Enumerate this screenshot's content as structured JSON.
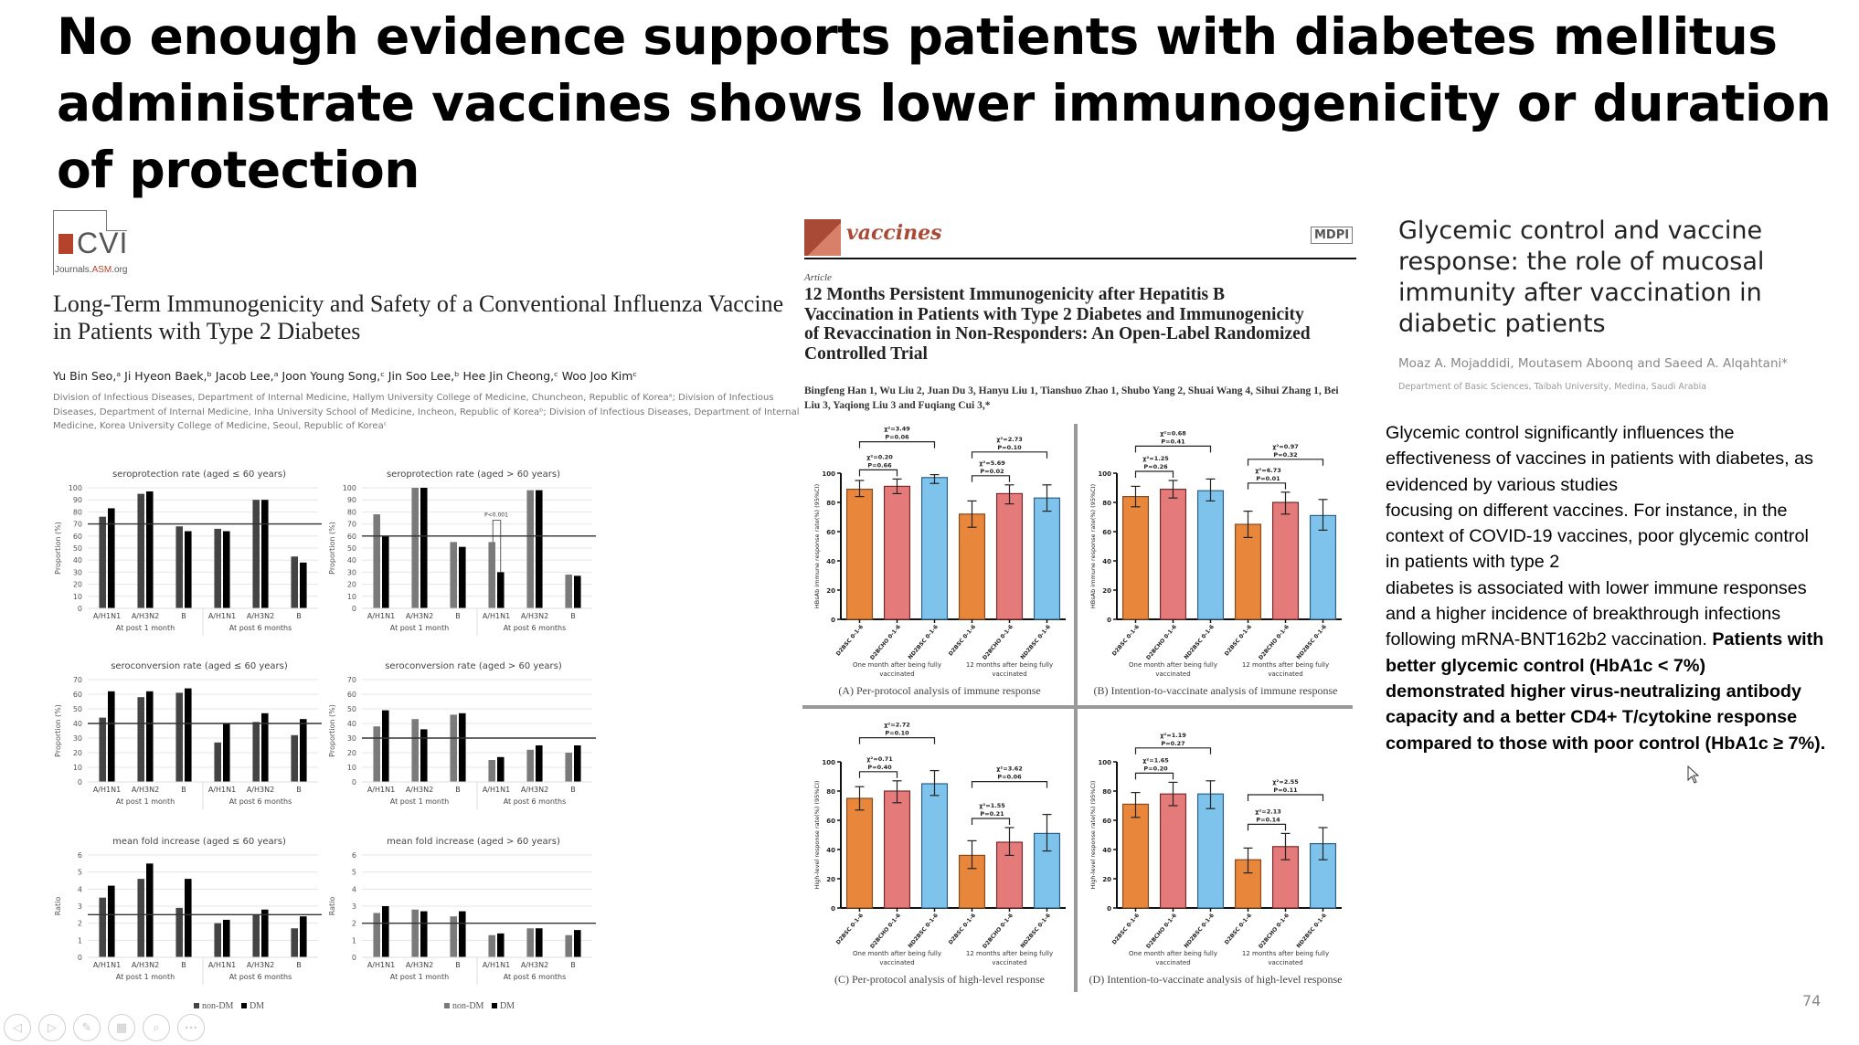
{
  "slide": {
    "title": "No enough evidence supports patients with diabetes mellitus administrate vaccines shows lower immunogenicity or duration of protection",
    "page_number": "74"
  },
  "paper1": {
    "journal_logo": "CVI",
    "journal_site_prefix": "Journals.",
    "journal_site_asm": "ASM",
    "journal_site_suffix": ".org",
    "title": "Long-Term Immunogenicity and Safety of a Conventional Influenza Vaccine in Patients with Type 2 Diabetes",
    "authors": "Yu Bin Seo,ᵃ Ji Hyeon Baek,ᵇ Jacob Lee,ᵃ Joon Young Song,ᶜ Jin Soo Lee,ᵇ Hee Jin Cheong,ᶜ Woo Joo Kimᶜ",
    "affiliations": "Division of Infectious Diseases, Department of Internal Medicine, Hallym University College of Medicine, Chuncheon, Republic of Koreaᵃ; Division of Infectious Diseases, Department of Internal Medicine, Inha University School of Medicine, Incheon, Republic of Koreaᵇ; Division of Infectious Diseases, Department of Internal Medicine, Korea University College of Medicine, Seoul, Republic of Koreaᶜ",
    "legend": {
      "non_dm": "non-DM",
      "dm": "DM"
    }
  },
  "paper2": {
    "journal": "vaccines",
    "publisher": "MDPI",
    "article_type": "Article",
    "title": "12 Months Persistent Immunogenicity after Hepatitis B Vaccination in Patients with Type 2 Diabetes and Immunogenicity of Revaccination in Non-Responders: An Open-Label Randomized Controlled Trial",
    "authors": "Bingfeng Han 1, Wu Liu 2, Juan Du 3, Hanyu Liu 1, Tianshuo Zhao 1, Shubo Yang 2, Shuai Wang 4, Sihui Zhang 1, Bei Liu 3, Yaqiong Liu 3 and Fuqiang Cui 3,*"
  },
  "paper3": {
    "title": "Glycemic control and vaccine response: the role of mucosal immunity after vaccination in diabetic patients",
    "authors": "Moaz A. Mojaddidi, Moutasem Aboonq and Saeed A. Alqahtani*",
    "affiliation": "Department of Basic Sciences, Taibah University, Medina, Saudi Arabia"
  },
  "summary": {
    "lines": [
      "Glycemic control significantly influences the",
      "effectiveness of vaccines in patients with diabetes, as",
      "evidenced by various studies",
      "focusing on different vaccines. For instance, in the",
      "context of COVID-19 vaccines, poor glycemic control",
      "in patients with type 2",
      "diabetes is associated with lower immune responses",
      "and a higher incidence of breakthrough infections"
    ],
    "line9_normal": "following mRNA-BNT162b2 vaccination. ",
    "line9_bold": "Patients with",
    "bold_lines": [
      "better glycemic control (HbA1c < 7%)",
      "demonstrated higher virus-neutralizing antibody",
      "capacity and a better CD4+ T/cytokine response",
      "compared to those with poor control (HbA1c ≥ 7%)."
    ]
  },
  "nav": {
    "buttons": [
      "previous",
      "next",
      "pen",
      "slides",
      "zoom",
      "more"
    ],
    "glyphs": [
      "◁",
      "▷",
      "✎",
      "▦",
      "⌕",
      "•••"
    ]
  },
  "colors": {
    "non_dm_young": "#444444",
    "non_dm_old": "#7a7a7a",
    "dm": "#000000",
    "d2bsc": "#e8873c",
    "d2bcho": "#e57a7a",
    "nd2bsc": "#7ec3ec",
    "cvi_red": "#b5432c",
    "vaccines_red": "#a94a36"
  },
  "chart_data": [
    {
      "type": "bar",
      "id": "flu-spr-young",
      "title": "seroprotection rate (aged ≤ 60 years)",
      "ylabel": "Proportion (%)",
      "ylim": [
        0,
        100
      ],
      "yticks": [
        0,
        10,
        20,
        30,
        40,
        50,
        60,
        70,
        80,
        90,
        100
      ],
      "reference_line": 70,
      "categories": [
        "A/H1N1",
        "A/H3N2",
        "B",
        "A/H1N1",
        "A/H3N2",
        "B"
      ],
      "groups": [
        "At post 1 month",
        "At post 6 months"
      ],
      "series": [
        {
          "name": "non-DM",
          "values": [
            76,
            95,
            68,
            66,
            90,
            43
          ]
        },
        {
          "name": "DM",
          "values": [
            83,
            97,
            64,
            64,
            90,
            38
          ]
        }
      ]
    },
    {
      "type": "bar",
      "id": "flu-spr-old",
      "title": "seroprotection rate (aged > 60 years)",
      "ylabel": "Proportion (%)",
      "ylim": [
        0,
        100
      ],
      "yticks": [
        0,
        10,
        20,
        30,
        40,
        50,
        60,
        70,
        80,
        90,
        100
      ],
      "reference_line": 60,
      "annotation": "P<0.001",
      "categories": [
        "A/H1N1",
        "A/H3N2",
        "B",
        "A/H1N1",
        "A/H3N2",
        "B"
      ],
      "groups": [
        "At post 1 month",
        "At post 6 months"
      ],
      "series": [
        {
          "name": "non-DM",
          "values": [
            78,
            100,
            55,
            55,
            98,
            28
          ]
        },
        {
          "name": "DM",
          "values": [
            60,
            100,
            51,
            30,
            98,
            27
          ]
        }
      ]
    },
    {
      "type": "bar",
      "id": "flu-scr-young",
      "title": "seroconversion rate (aged ≤ 60 years)",
      "ylabel": "Proportion (%)",
      "ylim": [
        0,
        70
      ],
      "yticks": [
        0,
        10,
        20,
        30,
        40,
        50,
        60,
        70
      ],
      "reference_line": 40,
      "categories": [
        "A/H1N1",
        "A/H3N2",
        "B",
        "A/H1N1",
        "A/H3N2",
        "B"
      ],
      "groups": [
        "At post 1 month",
        "At post 6 months"
      ],
      "series": [
        {
          "name": "non-DM",
          "values": [
            44,
            58,
            61,
            27,
            41,
            32
          ]
        },
        {
          "name": "DM",
          "values": [
            62,
            62,
            64,
            40,
            47,
            43
          ]
        }
      ]
    },
    {
      "type": "bar",
      "id": "flu-scr-old",
      "title": "seroconversion rate (aged > 60 years)",
      "ylabel": "Proportion (%)",
      "ylim": [
        0,
        70
      ],
      "yticks": [
        0,
        10,
        20,
        30,
        40,
        50,
        60,
        70
      ],
      "reference_line": 30,
      "categories": [
        "A/H1N1",
        "A/H3N2",
        "B",
        "A/H1N1",
        "A/H3N2",
        "B"
      ],
      "groups": [
        "At post 1 month",
        "At post 6 months"
      ],
      "series": [
        {
          "name": "non-DM",
          "values": [
            38,
            43,
            46,
            15,
            22,
            20
          ]
        },
        {
          "name": "DM",
          "values": [
            49,
            36,
            47,
            17,
            25,
            25
          ]
        }
      ]
    },
    {
      "type": "bar",
      "id": "flu-mfi-young",
      "title": "mean fold increase (aged ≤ 60 years)",
      "ylabel": "Ratio",
      "ylim": [
        0,
        6
      ],
      "yticks": [
        0,
        1,
        2,
        3,
        4,
        5,
        6
      ],
      "reference_line": 2.5,
      "categories": [
        "A/H1N1",
        "A/H3N2",
        "B",
        "A/H1N1",
        "A/H3N2",
        "B"
      ],
      "groups": [
        "At post 1 month",
        "At post 6 months"
      ],
      "series": [
        {
          "name": "non-DM",
          "values": [
            3.5,
            4.6,
            2.9,
            2.0,
            2.5,
            1.7
          ]
        },
        {
          "name": "DM",
          "values": [
            4.2,
            5.5,
            4.6,
            2.2,
            2.8,
            2.4
          ]
        }
      ]
    },
    {
      "type": "bar",
      "id": "flu-mfi-old",
      "title": "mean fold increase (aged > 60 years)",
      "ylabel": "Ratio",
      "ylim": [
        0,
        6
      ],
      "yticks": [
        0,
        1,
        2,
        3,
        4,
        5,
        6
      ],
      "reference_line": 2.0,
      "categories": [
        "A/H1N1",
        "A/H3N2",
        "B",
        "A/H1N1",
        "A/H3N2",
        "B"
      ],
      "groups": [
        "At post 1 month",
        "At post 6 months"
      ],
      "series": [
        {
          "name": "non-DM",
          "values": [
            2.6,
            2.8,
            2.4,
            1.3,
            1.7,
            1.3
          ]
        },
        {
          "name": "DM",
          "values": [
            3.0,
            2.7,
            2.7,
            1.4,
            1.7,
            1.6
          ]
        }
      ]
    },
    {
      "type": "bar",
      "id": "hbv-A",
      "title": "(A) Per-protocol analysis of immune response",
      "ylabel": "HBsAb immune response rate(%) (95%CI)",
      "ylim": [
        0,
        100
      ],
      "yticks": [
        0,
        20,
        40,
        60,
        80,
        100
      ],
      "categories": [
        "D2BSC 0-1-6",
        "D2BCHO 0-1-6",
        "ND2BSC 0-1-6",
        "D2BSC 0-1-6",
        "D2BCHO 0-1-6",
        "ND2BSC 0-1-6"
      ],
      "groups": [
        "One month after being fully vaccinated",
        "12 months after being fully vaccinated"
      ],
      "values": [
        89,
        91,
        97,
        72,
        86,
        83
      ],
      "ci": [
        [
          84,
          95
        ],
        [
          86,
          96
        ],
        [
          93,
          99
        ],
        [
          63,
          81
        ],
        [
          79,
          92
        ],
        [
          74,
          92
        ]
      ],
      "comparisons": [
        {
          "label": "χ²=3.49",
          "p": "P=0.06",
          "from": 0,
          "to": 2,
          "level": 2
        },
        {
          "label": "χ²=0.20",
          "p": "P=0.66",
          "from": 0,
          "to": 1,
          "level": 1
        },
        {
          "label": "χ²=2.73",
          "p": "P=0.10",
          "from": 3,
          "to": 5,
          "level": 2
        },
        {
          "label": "χ²=5.69",
          "p": "P=0.02",
          "from": 3,
          "to": 4,
          "level": 1
        }
      ]
    },
    {
      "type": "bar",
      "id": "hbv-B",
      "title": "(B) Intention-to-vaccinate analysis of immune response",
      "ylabel": "HBsAb immune response rate(%) (95%CI)",
      "ylim": [
        0,
        100
      ],
      "yticks": [
        0,
        20,
        40,
        60,
        80,
        100
      ],
      "categories": [
        "D2BSC 0-1-6",
        "D2BCHO 0-1-6",
        "ND2BSC 0-1-6",
        "D2BSC 0-1-6",
        "D2BCHO 0-1-6",
        "ND2BSC 0-1-6"
      ],
      "groups": [
        "One month after being fully vaccinated",
        "12 months after being fully vaccinated"
      ],
      "values": [
        84,
        89,
        88,
        65,
        80,
        71
      ],
      "ci": [
        [
          77,
          91
        ],
        [
          83,
          95
        ],
        [
          81,
          96
        ],
        [
          56,
          74
        ],
        [
          72,
          87
        ],
        [
          61,
          82
        ]
      ],
      "comparisons": [
        {
          "label": "χ²=0.68",
          "p": "P=0.41",
          "from": 0,
          "to": 2,
          "level": 2
        },
        {
          "label": "χ²=1.25",
          "p": "P=0.26",
          "from": 0,
          "to": 1,
          "level": 1
        },
        {
          "label": "χ²=0.97",
          "p": "P=0.32",
          "from": 3,
          "to": 5,
          "level": 2
        },
        {
          "label": "χ²=6.73",
          "p": "P=0.01",
          "from": 3,
          "to": 4,
          "level": 1
        }
      ]
    },
    {
      "type": "bar",
      "id": "hbv-C",
      "title": "(C) Per-protocol analysis of high-level response",
      "ylabel": "High-level response rate(%) (95%CI)",
      "ylim": [
        0,
        100
      ],
      "yticks": [
        0,
        20,
        40,
        60,
        80,
        100
      ],
      "categories": [
        "D2BSC 0-1-6",
        "D2BCHO 0-1-6",
        "ND2BSC 0-1-6",
        "D2BSC 0-1-6",
        "D2BCHO 0-1-6",
        "ND2BSC 0-1-6"
      ],
      "groups": [
        "One month after being fully vaccinated",
        "12 months after being fully vaccinated"
      ],
      "values": [
        75,
        80,
        85,
        36,
        45,
        51
      ],
      "ci": [
        [
          67,
          83
        ],
        [
          72,
          87
        ],
        [
          77,
          94
        ],
        [
          27,
          46
        ],
        [
          36,
          55
        ],
        [
          39,
          64
        ]
      ],
      "comparisons": [
        {
          "label": "χ²=2.72",
          "p": "P=0.10",
          "from": 0,
          "to": 2,
          "level": 2
        },
        {
          "label": "χ²=0.71",
          "p": "P=0.40",
          "from": 0,
          "to": 1,
          "level": 1
        },
        {
          "label": "χ²=3.62",
          "p": "P=0.06",
          "from": 3,
          "to": 5,
          "level": 2
        },
        {
          "label": "χ²=1.55",
          "p": "P=0.21",
          "from": 3,
          "to": 4,
          "level": 1
        }
      ]
    },
    {
      "type": "bar",
      "id": "hbv-D",
      "title": "(D) Intention-to-vaccinate analysis of high-level response",
      "ylabel": "High-level response rate(%) (95%CI)",
      "ylim": [
        0,
        100
      ],
      "yticks": [
        0,
        20,
        40,
        60,
        80,
        100
      ],
      "categories": [
        "D2BSC 0-1-6",
        "D2BCHO 0-1-6",
        "ND2BSC 0-1-6",
        "D2BSC 0-1-6",
        "D2BCHO 0-1-6",
        "ND2BSC 0-1-6"
      ],
      "groups": [
        "One month after being fully vaccinated",
        "12 months after being fully vaccinated"
      ],
      "values": [
        71,
        78,
        78,
        33,
        42,
        44
      ],
      "ci": [
        [
          62,
          79
        ],
        [
          70,
          86
        ],
        [
          68,
          87
        ],
        [
          24,
          41
        ],
        [
          33,
          51
        ],
        [
          33,
          55
        ]
      ],
      "comparisons": [
        {
          "label": "χ²=1.19",
          "p": "P=0.27",
          "from": 0,
          "to": 2,
          "level": 2
        },
        {
          "label": "χ²=1.65",
          "p": "P=0.20",
          "from": 0,
          "to": 1,
          "level": 1
        },
        {
          "label": "χ²=2.55",
          "p": "P=0.11",
          "from": 3,
          "to": 5,
          "level": 2
        },
        {
          "label": "χ²=2.13",
          "p": "P=0.14",
          "from": 3,
          "to": 4,
          "level": 1
        }
      ]
    }
  ]
}
